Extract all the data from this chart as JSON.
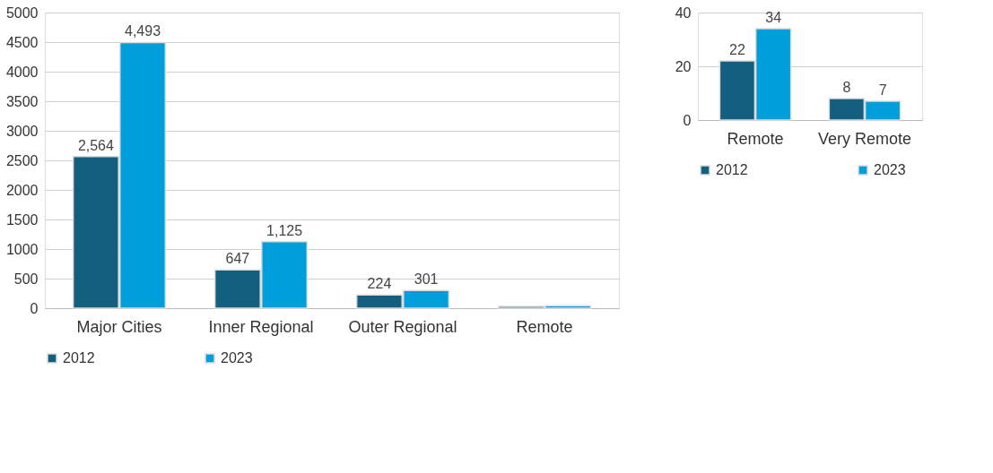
{
  "chart_data": [
    {
      "type": "bar",
      "categories": [
        "Major Cities",
        "Inner Regional",
        "Outer Regional",
        "Remote"
      ],
      "ylim": [
        0,
        5000
      ],
      "yticks": [
        0,
        500,
        1000,
        1500,
        2000,
        2500,
        3000,
        3500,
        4000,
        4500,
        5000
      ],
      "grid": "y",
      "legend": "bottom",
      "series": [
        {
          "name": "2012",
          "color": "#135f7f",
          "values": [
            2564,
            647,
            224,
            30
          ],
          "value_labels": [
            "2,564",
            "647",
            "224",
            null
          ]
        },
        {
          "name": "2023",
          "color": "#009fdb",
          "values": [
            4493,
            1125,
            301,
            40
          ],
          "value_labels": [
            "4,493",
            "1,125",
            "301",
            null
          ]
        }
      ]
    },
    {
      "type": "bar",
      "categories": [
        "Remote",
        "Very Remote"
      ],
      "ylim": [
        0,
        40
      ],
      "yticks": [
        0,
        20,
        40
      ],
      "grid": "y",
      "legend": "bottom",
      "data_labels": true,
      "series": [
        {
          "name": "2012",
          "color": "#135f7f",
          "values": [
            22,
            8
          ]
        },
        {
          "name": "2023",
          "color": "#009fdb",
          "values": [
            34,
            7
          ]
        }
      ]
    }
  ]
}
